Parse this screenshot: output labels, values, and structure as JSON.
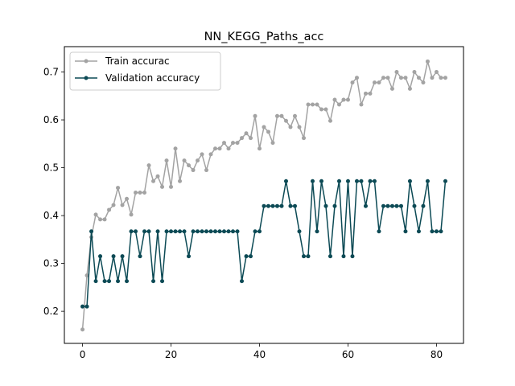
{
  "chart_data": {
    "type": "line",
    "title": "NN_KEGG_Paths_acc",
    "xlabel": "",
    "ylabel": "",
    "xlim": [
      -4.1,
      86.1
    ],
    "ylim": [
      0.133,
      0.753
    ],
    "x_ticks": [
      0,
      20,
      40,
      60,
      80
    ],
    "y_ticks": [
      0.2,
      0.3,
      0.4,
      0.5,
      0.6,
      0.7
    ],
    "grid": false,
    "legend_position": "top-left",
    "x": [
      0,
      1,
      2,
      3,
      4,
      5,
      6,
      7,
      8,
      9,
      10,
      11,
      12,
      13,
      14,
      15,
      16,
      17,
      18,
      19,
      20,
      21,
      22,
      23,
      24,
      25,
      26,
      27,
      28,
      29,
      30,
      31,
      32,
      33,
      34,
      35,
      36,
      37,
      38,
      39,
      40,
      41,
      42,
      43,
      44,
      45,
      46,
      47,
      48,
      49,
      50,
      51,
      52,
      53,
      54,
      55,
      56,
      57,
      58,
      59,
      60,
      61,
      62,
      63,
      64,
      65,
      66,
      67,
      68,
      69,
      70,
      71,
      72,
      73,
      74,
      75,
      76,
      77,
      78,
      79,
      80,
      81,
      82
    ],
    "series": [
      {
        "name": "Train accurac",
        "color": "#a3a3a3",
        "marker": "circle",
        "values": [
          0.162,
          0.275,
          0.355,
          0.402,
          0.392,
          0.392,
          0.412,
          0.422,
          0.458,
          0.422,
          0.435,
          0.402,
          0.448,
          0.448,
          0.448,
          0.505,
          0.472,
          0.482,
          0.46,
          0.515,
          0.46,
          0.54,
          0.472,
          0.515,
          0.505,
          0.495,
          0.515,
          0.528,
          0.495,
          0.528,
          0.54,
          0.54,
          0.552,
          0.54,
          0.552,
          0.552,
          0.562,
          0.572,
          0.562,
          0.608,
          0.54,
          0.585,
          0.575,
          0.552,
          0.608,
          0.608,
          0.598,
          0.585,
          0.608,
          0.585,
          0.562,
          0.632,
          0.632,
          0.632,
          0.622,
          0.622,
          0.598,
          0.642,
          0.632,
          0.642,
          0.642,
          0.678,
          0.688,
          0.632,
          0.655,
          0.655,
          0.678,
          0.678,
          0.688,
          0.688,
          0.665,
          0.7,
          0.688,
          0.688,
          0.665,
          0.7,
          0.688,
          0.678,
          0.722,
          0.688,
          0.7,
          0.688,
          0.688
        ]
      },
      {
        "name": "Validation accuracy",
        "color": "#0c4a55",
        "marker": "circle",
        "values": [
          0.21,
          0.21,
          0.367,
          0.263,
          0.315,
          0.263,
          0.263,
          0.315,
          0.263,
          0.315,
          0.263,
          0.367,
          0.367,
          0.315,
          0.367,
          0.367,
          0.263,
          0.367,
          0.263,
          0.367,
          0.367,
          0.367,
          0.367,
          0.367,
          0.315,
          0.367,
          0.367,
          0.367,
          0.367,
          0.367,
          0.367,
          0.367,
          0.367,
          0.367,
          0.367,
          0.367,
          0.263,
          0.315,
          0.315,
          0.367,
          0.367,
          0.42,
          0.42,
          0.42,
          0.42,
          0.42,
          0.472,
          0.42,
          0.42,
          0.367,
          0.315,
          0.315,
          0.472,
          0.367,
          0.472,
          0.42,
          0.315,
          0.42,
          0.472,
          0.315,
          0.472,
          0.315,
          0.472,
          0.472,
          0.42,
          0.472,
          0.472,
          0.367,
          0.42,
          0.42,
          0.42,
          0.42,
          0.42,
          0.367,
          0.472,
          0.42,
          0.367,
          0.42,
          0.472,
          0.367,
          0.367,
          0.367,
          0.472
        ]
      }
    ]
  }
}
